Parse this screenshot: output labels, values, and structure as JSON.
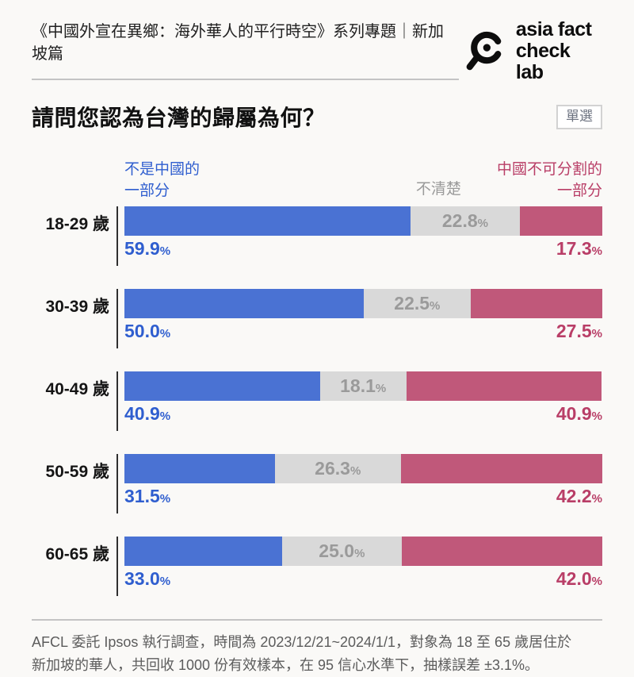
{
  "header": {
    "series_title": "《中國外宣在異鄉：海外華人的平行時空》系列專題｜新加坡篇",
    "logo": {
      "icon": "magnifier-icon",
      "line1": "asia fact",
      "line2": "check lab"
    }
  },
  "question": {
    "title": "請問您認為台灣的歸屬為何？",
    "badge": "單選"
  },
  "colors": {
    "not_china": "#4a72d3",
    "unsure_segment": "#d9d9d9",
    "china": "#c0587a",
    "not_china_text": "#2f5ecf",
    "unsure_text": "#9a9a9a",
    "china_text": "#b93e67"
  },
  "chart_data": {
    "type": "bar",
    "orientation": "horizontal",
    "stacked": true,
    "unit": "%",
    "xlim": [
      0,
      100
    ],
    "categories": [
      "18-29 歲",
      "30-39 歲",
      "40-49 歲",
      "50-59 歲",
      "60-65 歲"
    ],
    "series": [
      {
        "name": "不是中國的一部分",
        "color": "#4a72d3",
        "values": [
          59.9,
          50.0,
          40.9,
          31.5,
          33.0
        ]
      },
      {
        "name": "不清楚",
        "color": "#d9d9d9",
        "values": [
          22.8,
          22.5,
          18.1,
          26.3,
          25.0
        ]
      },
      {
        "name": "中國不可分割的一部分",
        "color": "#c0587a",
        "values": [
          17.3,
          27.5,
          40.9,
          42.2,
          42.0
        ]
      }
    ],
    "legend": {
      "left_line1": "不是中國的",
      "left_line2": "一部分",
      "middle": "不清楚",
      "right_line1": "中國不可分割的",
      "right_line2": "一部分"
    }
  },
  "footer": {
    "line1": "AFCL 委託 Ipsos 執行調查，時間為 2023/12/21~2024/1/1，對象為 18 至 65 歲居住於",
    "line2": "新加坡的華人，共回收 1000 份有效樣本，在 95 信心水準下，抽樣誤差 ±3.1%。"
  }
}
